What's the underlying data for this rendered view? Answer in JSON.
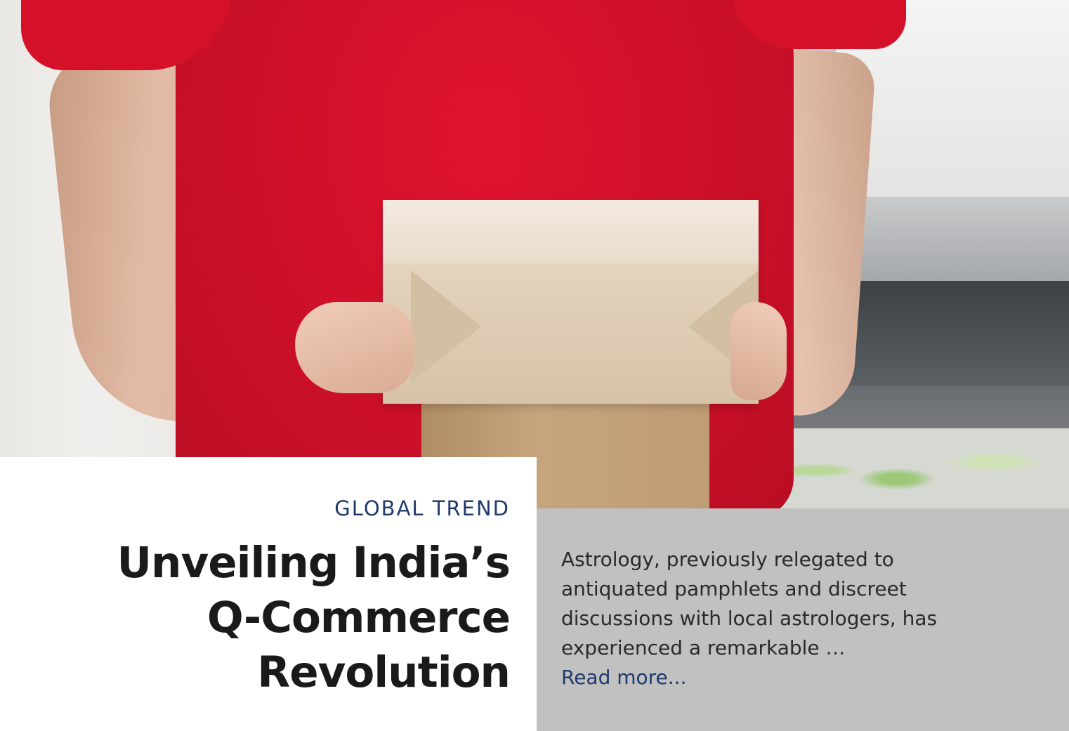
{
  "hero": {
    "image_subject": "delivery-person-holding-box"
  },
  "article": {
    "category": "GLOBAL TREND",
    "title": "Unveiling India’s Q-Commerce Revolution",
    "excerpt": "Astrology, previously relegated to antiquated pamphlets and discreet discussions with local astrologers, has experienced a remarkable …",
    "read_more_label": "Read more..."
  },
  "colors": {
    "accent_blue": "#1f3a6b",
    "title_text": "#1a1a1a",
    "panel_grey": "#c1c1c1",
    "shirt_red": "#d0102a"
  }
}
